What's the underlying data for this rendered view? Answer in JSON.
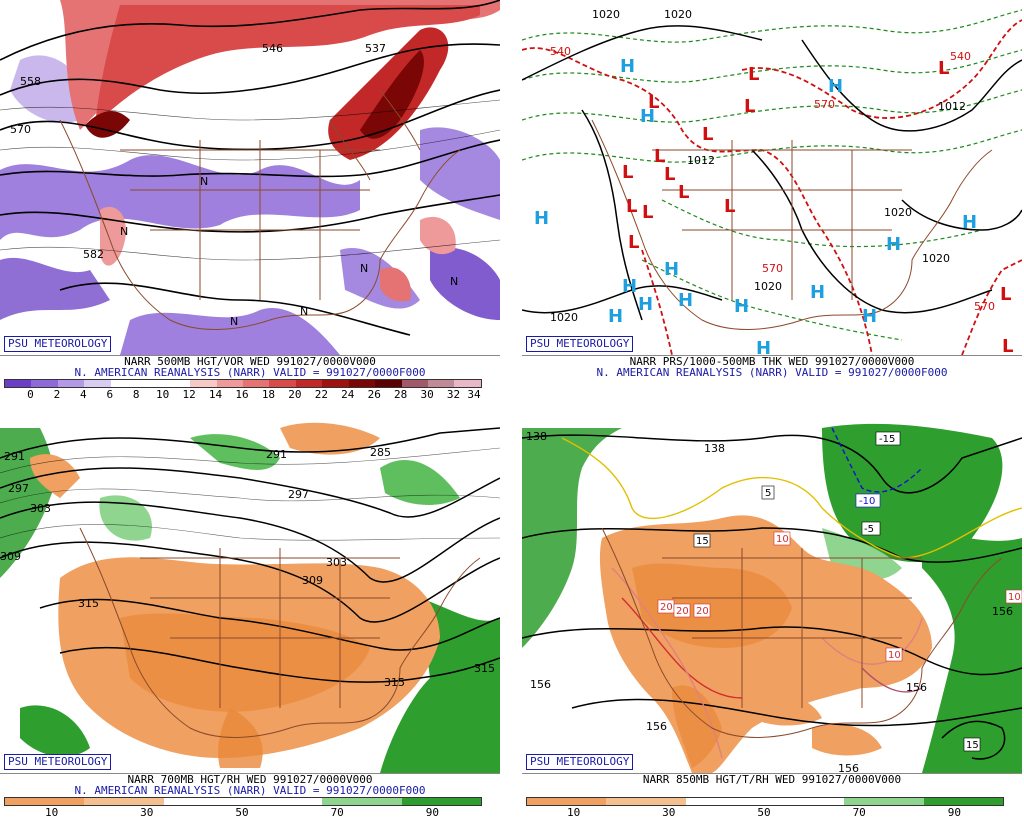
{
  "badge": "PSU METEOROLOGY",
  "panels": {
    "p1": {
      "title": "NARR 500MB HGT/VOR WED 991027/0000V000",
      "subtitle": "N. AMERICAN REANALYSIS (NARR) VALID = 991027/0000F000",
      "colorbar_ticks": [
        "0",
        "2",
        "4",
        "6",
        "8",
        "10",
        "12",
        "14",
        "16",
        "18",
        "20",
        "22",
        "24",
        "26",
        "28",
        "30",
        "32",
        "34"
      ],
      "contour_labels": [
        "558",
        "570",
        "582",
        "546",
        "537"
      ],
      "colors": [
        "#6a3fc6",
        "#8e6ad8",
        "#b49ae6",
        "#d9ccf2",
        "#ffffff",
        "#ffffff",
        "#ffffff",
        "#f7c8c8",
        "#ef9a9a",
        "#e57373",
        "#d94a4a",
        "#c22828",
        "#9e1212",
        "#7a0606",
        "#5a0202",
        "#a05a6a",
        "#c08a99",
        "#e8b8c6"
      ]
    },
    "p2": {
      "title": "NARR PRS/1000-500MB THK WED 991027/0000V000",
      "subtitle": "N. AMERICAN REANALYSIS (NARR) VALID = 991027/0000F000",
      "high_label": "H",
      "low_label": "L",
      "contour_labels": [
        "1020",
        "1012",
        "1020",
        "1020",
        "1020",
        "1012",
        "1020",
        "1020"
      ],
      "thickness_labels": [
        "540",
        "540",
        "570",
        "570",
        "570"
      ]
    },
    "p3": {
      "title": "NARR 700MB HGT/RH WED 991027/0000V000",
      "subtitle": "N. AMERICAN REANALYSIS (NARR) VALID = 991027/0000F000",
      "colorbar_ticks": [
        "10",
        "30",
        "50",
        "70",
        "90"
      ],
      "contour_labels": [
        "291",
        "297",
        "303",
        "309",
        "315",
        "297",
        "285",
        "303",
        "309",
        "315",
        "291",
        "315"
      ],
      "colors": [
        "#f0a060",
        "#f5c08f",
        "#ffffff",
        "#ffffff",
        "#8fd48f",
        "#2e9e2e"
      ]
    },
    "p4": {
      "title": "NARR 850MB HGT/T/RH WED 991027/0000V000",
      "subtitle": "",
      "colorbar_ticks": [
        "10",
        "30",
        "50",
        "70",
        "90"
      ],
      "contour_labels": [
        "138",
        "138",
        "156",
        "156",
        "156",
        "156",
        "156"
      ],
      "temp_labels": [
        "-15",
        "-10",
        "-5",
        "5",
        "10",
        "15",
        "20",
        "20",
        "20",
        "10",
        "15",
        "10"
      ],
      "colors": [
        "#f0a060",
        "#f5c08f",
        "#ffffff",
        "#ffffff",
        "#8fd48f",
        "#2e9e2e"
      ]
    }
  }
}
